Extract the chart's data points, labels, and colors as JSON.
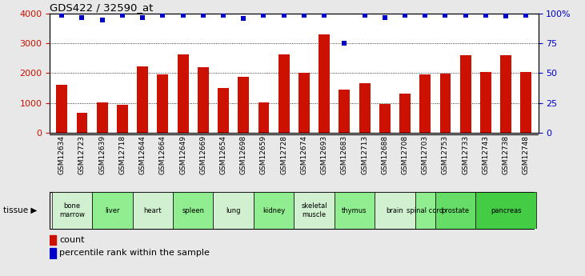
{
  "title": "GDS422 / 32590_at",
  "samples": [
    "GSM12634",
    "GSM12723",
    "GSM12639",
    "GSM12718",
    "GSM12644",
    "GSM12664",
    "GSM12649",
    "GSM12669",
    "GSM12654",
    "GSM12698",
    "GSM12659",
    "GSM12728",
    "GSM12674",
    "GSM12693",
    "GSM12683",
    "GSM12713",
    "GSM12688",
    "GSM12708",
    "GSM12703",
    "GSM12753",
    "GSM12733",
    "GSM12743",
    "GSM12738",
    "GSM12748"
  ],
  "counts": [
    1620,
    660,
    1020,
    940,
    2220,
    1960,
    2620,
    2200,
    1490,
    1870,
    1020,
    2620,
    2010,
    3310,
    1440,
    1660,
    960,
    1300,
    1960,
    1990,
    2600,
    2040,
    2600,
    2040
  ],
  "percentiles": [
    99,
    97,
    95,
    99,
    97,
    99,
    99,
    99,
    99,
    96,
    99,
    99,
    99,
    99,
    75,
    99,
    97,
    99,
    99,
    99,
    99,
    99,
    98,
    99
  ],
  "tissues": [
    {
      "label": "bone\nmarrow",
      "start": 0,
      "end": 2,
      "color": "#d0f0d0"
    },
    {
      "label": "liver",
      "start": 2,
      "end": 4,
      "color": "#90ee90"
    },
    {
      "label": "heart",
      "start": 4,
      "end": 6,
      "color": "#d0f0d0"
    },
    {
      "label": "spleen",
      "start": 6,
      "end": 8,
      "color": "#90ee90"
    },
    {
      "label": "lung",
      "start": 8,
      "end": 10,
      "color": "#d0f0d0"
    },
    {
      "label": "kidney",
      "start": 10,
      "end": 12,
      "color": "#90ee90"
    },
    {
      "label": "skeletal\nmuscle",
      "start": 12,
      "end": 14,
      "color": "#d0f0d0"
    },
    {
      "label": "thymus",
      "start": 14,
      "end": 16,
      "color": "#90ee90"
    },
    {
      "label": "brain",
      "start": 16,
      "end": 18,
      "color": "#d0f0d0"
    },
    {
      "label": "spinal cord",
      "start": 18,
      "end": 19,
      "color": "#90ee90"
    },
    {
      "label": "prostate",
      "start": 19,
      "end": 21,
      "color": "#66dd66"
    },
    {
      "label": "pancreas",
      "start": 21,
      "end": 24,
      "color": "#44cc44"
    }
  ],
  "bar_color": "#cc1100",
  "dot_color": "#0000cc",
  "ylim_left": [
    0,
    4000
  ],
  "ylim_right": [
    0,
    100
  ],
  "yticks_left": [
    0,
    1000,
    2000,
    3000,
    4000
  ],
  "yticks_right": [
    0,
    25,
    50,
    75,
    100
  ],
  "fig_bg": "#e8e8e8"
}
